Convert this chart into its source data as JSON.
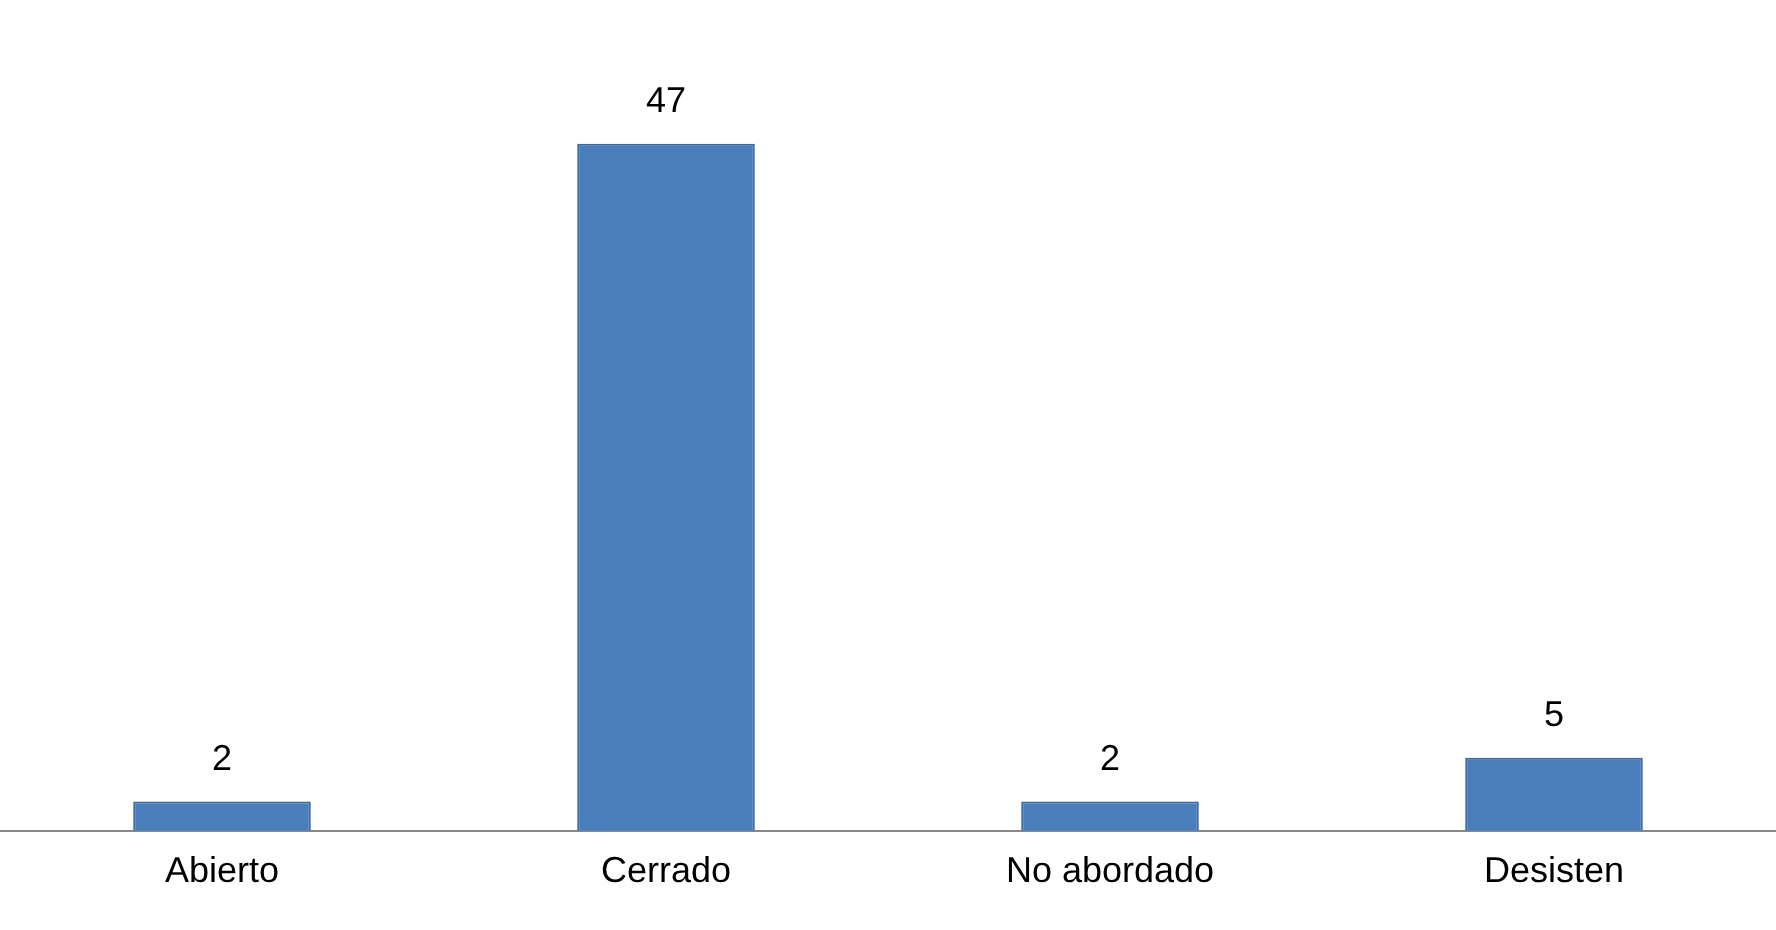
{
  "chart_data": {
    "type": "bar",
    "categories": [
      "Abierto",
      "Cerrado",
      "No abordado",
      "Desisten"
    ],
    "values": [
      2,
      47,
      2,
      5
    ],
    "color": "#4a7ebb",
    "data_labels": true,
    "grid": false,
    "legend": false
  }
}
